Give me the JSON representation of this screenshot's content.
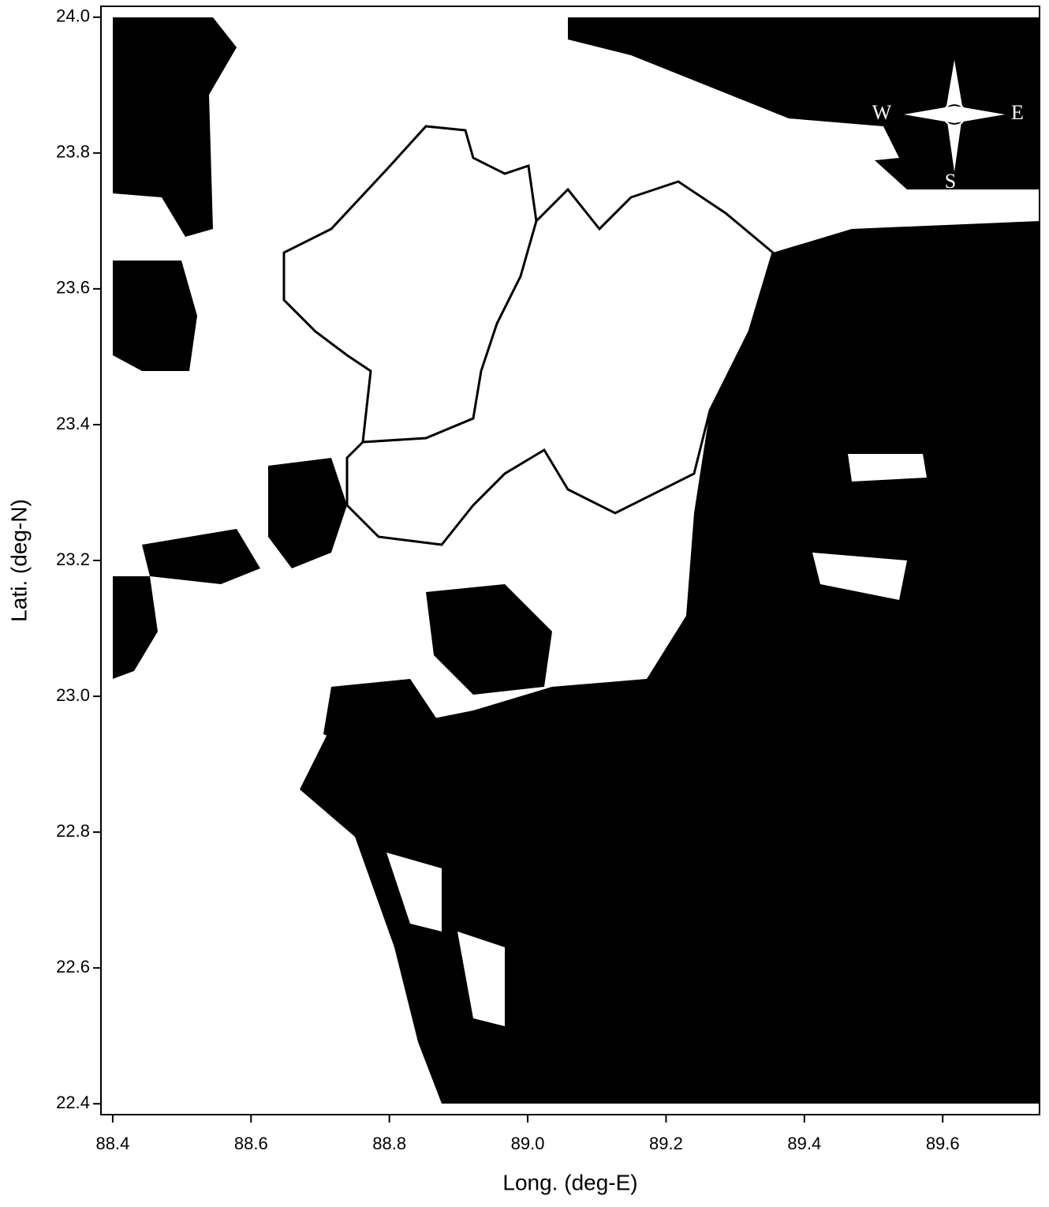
{
  "chart_data": {
    "type": "map",
    "xlabel": "Long. (deg-E)",
    "ylabel": "Lati. (deg-N)",
    "xlim": [
      88.383,
      89.74
    ],
    "ylim": [
      22.384,
      24.016
    ],
    "xticks": [
      88.4,
      88.6,
      88.8,
      {
        "value": 89,
        "label": "89.0"
      },
      89.2,
      89.4,
      89.6
    ],
    "yticks": [
      22.4,
      22.6,
      22.8,
      {
        "value": 23,
        "label": "23.0"
      },
      23.2,
      23.4,
      23.6,
      23.8,
      {
        "value": 24,
        "label": "24.0"
      }
    ],
    "compass_labels": [
      "W",
      "E",
      "S"
    ]
  }
}
